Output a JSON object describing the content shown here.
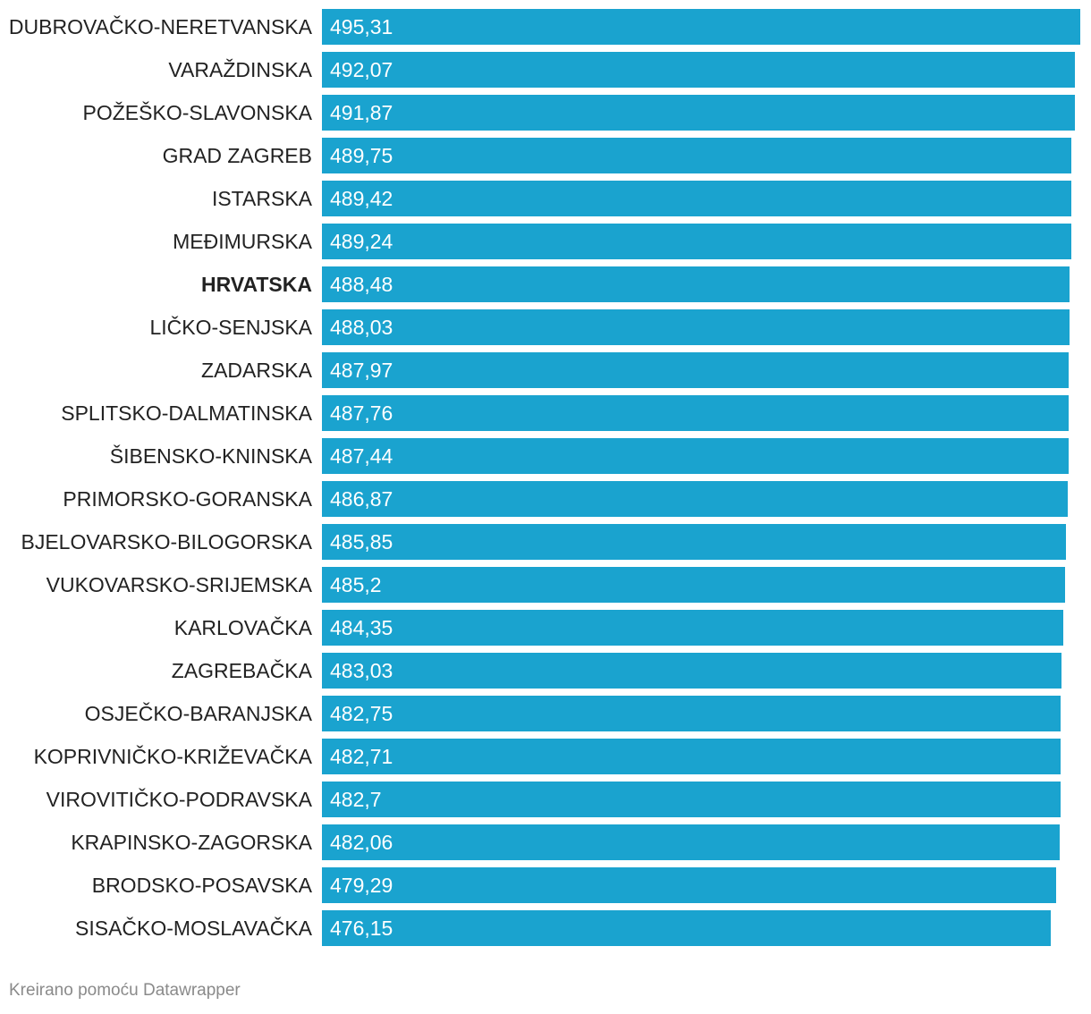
{
  "chart_data": {
    "type": "bar",
    "orientation": "horizontal",
    "categories": [
      "DUBROVAČKO-NERETVANSKA",
      "VARAŽDINSKA",
      "POŽEŠKO-SLAVONSKA",
      "GRAD ZAGREB",
      "ISTARSKA",
      "MEĐIMURSKA",
      "HRVATSKA",
      "LIČKO-SENJSKA",
      "ZADARSKA",
      "SPLITSKO-DALMATINSKA",
      "ŠIBENSKO-KNINSKA",
      "PRIMORSKO-GORANSKA",
      "BJELOVARSKO-BILOGORSKA",
      "VUKOVARSKO-SRIJEMSKA",
      "KARLOVAČKA",
      "ZAGREBAČKA",
      "OSJEČKO-BARANJSKA",
      "KOPRIVNIČKO-KRIŽEVAČKA",
      "VIROVITIČKO-PODRAVSKA",
      "KRAPINSKO-ZAGORSKA",
      "BRODSKO-POSAVSKA",
      "SISAČKO-MOSLAVAČKA"
    ],
    "values": [
      495.31,
      492.07,
      491.87,
      489.75,
      489.42,
      489.24,
      488.48,
      488.03,
      487.97,
      487.76,
      487.44,
      486.87,
      485.85,
      485.2,
      484.35,
      483.03,
      482.75,
      482.71,
      482.7,
      482.06,
      479.29,
      476.15
    ],
    "value_labels": [
      "495,31",
      "492,07",
      "491,87",
      "489,75",
      "489,42",
      "489,24",
      "488,48",
      "488,03",
      "487,97",
      "487,76",
      "487,44",
      "486,87",
      "485,85",
      "485,2",
      "484,35",
      "483,03",
      "482,75",
      "482,71",
      "482,7",
      "482,06",
      "479,29",
      "476,15"
    ],
    "highlighted_category": "HRVATSKA",
    "bar_color": "#1aa3cf",
    "value_label_color": "#ffffff",
    "axis_min": 0,
    "grid": false,
    "legend": "none"
  },
  "footer": {
    "credit": "Kreirano pomoću Datawrapper"
  }
}
